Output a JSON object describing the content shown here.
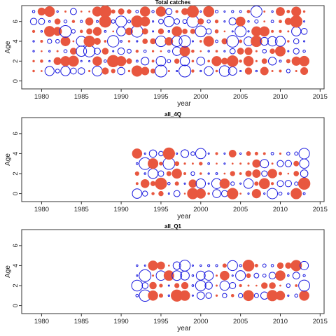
{
  "chart_data": [
    {
      "type": "scatter",
      "title": "Total catches",
      "xlabel": "year",
      "ylabel": "Age",
      "xlim": [
        1977.5,
        2015.5
      ],
      "ylim": [
        -0.8,
        7.6
      ],
      "xticks": [
        "1980",
        "1985",
        "1990",
        "1995",
        "2000",
        "2005",
        "2010",
        "2015"
      ],
      "yticks": [
        "0",
        "2",
        "4",
        "6"
      ],
      "year_range": [
        1979,
        2013
      ],
      "ages": [
        1,
        2,
        3,
        4,
        5,
        6,
        7
      ],
      "series": [
        {
          "color": "#e8573f",
          "marker": "filled-circle",
          "meaning": "positive"
        },
        {
          "color": "#1a1adf",
          "marker": "open-circle",
          "meaning": "negative"
        }
      ],
      "grid": false
    },
    {
      "type": "scatter",
      "title": "all_4Q",
      "xlabel": "year",
      "ylabel": "Age",
      "xlim": [
        1977.5,
        2015.5
      ],
      "ylim": [
        -0.8,
        7.6
      ],
      "xticks": [
        "1980",
        "1985",
        "1990",
        "1995",
        "2000",
        "2005",
        "2010",
        "2015"
      ],
      "yticks": [
        "0",
        "2",
        "4",
        "6"
      ],
      "year_range": [
        1992,
        2013
      ],
      "ages": [
        0,
        1,
        2,
        3,
        4
      ],
      "series": [
        {
          "color": "#e8573f",
          "marker": "filled-circle",
          "meaning": "positive"
        },
        {
          "color": "#1a1adf",
          "marker": "open-circle",
          "meaning": "negative"
        }
      ],
      "grid": false
    },
    {
      "type": "scatter",
      "title": "all_Q1",
      "xlabel": "year",
      "ylabel": "Age",
      "xlim": [
        1977.5,
        2015.5
      ],
      "ylim": [
        -0.8,
        7.6
      ],
      "xticks": [
        "1980",
        "1985",
        "1990",
        "1995",
        "2000",
        "2005",
        "2010",
        "2015"
      ],
      "yticks": [
        "0",
        "2",
        "4",
        "6"
      ],
      "year_range": [
        1992,
        2013
      ],
      "ages": [
        1,
        2,
        3,
        4
      ],
      "series": [
        {
          "color": "#e8573f",
          "marker": "filled-circle",
          "meaning": "positive"
        },
        {
          "color": "#1a1adf",
          "marker": "open-circle",
          "meaning": "negative"
        }
      ],
      "grid": false
    }
  ]
}
